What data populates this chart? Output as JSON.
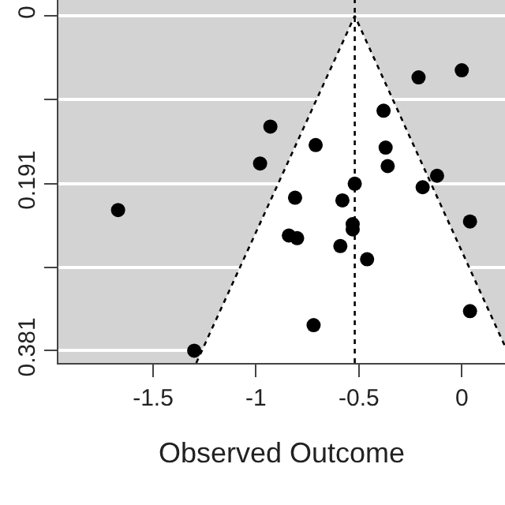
{
  "chart_data": {
    "type": "scatter",
    "xlabel": "Observed Outcome",
    "xlim": [
      -1.96,
      0.21
    ],
    "xticks": [
      -1.5,
      -1,
      -0.5,
      0
    ],
    "ylim": [
      0.395,
      -0.018
    ],
    "yticks": [
      0,
      {
        "value": 0.095,
        "label": null
      },
      0.191,
      {
        "value": 0.286,
        "label": null
      },
      0.381
    ],
    "grid": "y",
    "marker": "circle",
    "series": [
      {
        "type": "line",
        "color": "#000000",
        "line_style": "dotted",
        "marker": "none",
        "x": [
          -1.29,
          -0.52,
          0.21
        ],
        "values": [
          0.395,
          0,
          0.376
        ]
      },
      {
        "color": "#000000",
        "x": [
          0.0,
          -0.21,
          -0.38,
          -0.93,
          -0.71,
          -0.37,
          -0.98,
          -0.36,
          -0.12,
          -0.52,
          -0.19,
          -0.81,
          -0.58,
          0.04,
          -0.53,
          -0.53,
          -0.84,
          -0.8,
          -0.59,
          -0.46,
          0.04,
          -0.72,
          -1.67,
          -1.3
        ],
        "values": [
          0.062,
          0.07,
          0.108,
          0.126,
          0.147,
          0.15,
          0.168,
          0.171,
          0.182,
          0.191,
          0.195,
          0.207,
          0.21,
          0.234,
          0.237,
          0.243,
          0.25,
          0.253,
          0.262,
          0.277,
          0.336,
          0.352,
          0.221,
          0.381
        ]
      }
    ],
    "ref_lines": [
      {
        "axis": "x",
        "value": -0.52,
        "color": "#000000",
        "line_style": "dotted"
      }
    ]
  }
}
